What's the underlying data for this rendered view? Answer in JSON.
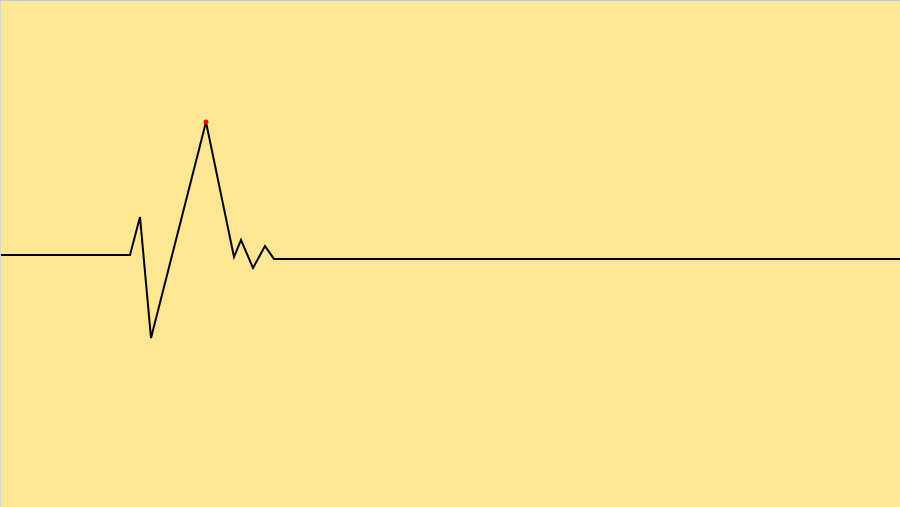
{
  "colors": {
    "background": "#ffe796",
    "line": "#000000",
    "marker": "#ff0000"
  },
  "waveform": {
    "description_free": true
  }
}
